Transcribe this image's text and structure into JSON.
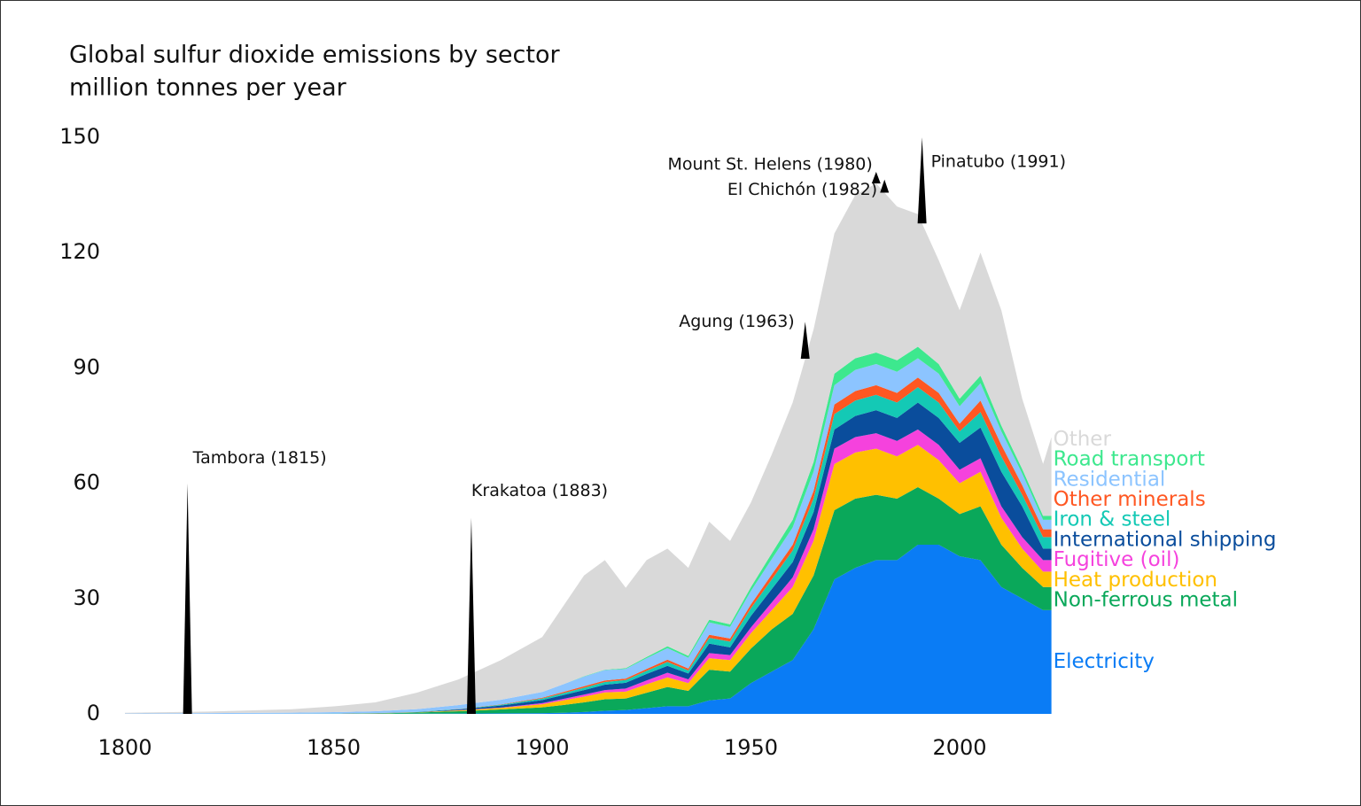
{
  "chart_data": {
    "type": "stacked-area",
    "title": "Global sulfur dioxide emissions by sector",
    "subtitle": "million tonnes per year",
    "x": [
      1800,
      1820,
      1840,
      1850,
      1860,
      1870,
      1880,
      1890,
      1900,
      1905,
      1910,
      1915,
      1920,
      1925,
      1930,
      1935,
      1940,
      1945,
      1950,
      1955,
      1960,
      1965,
      1970,
      1975,
      1980,
      1985,
      1990,
      1995,
      2000,
      2005,
      2010,
      2015,
      2020,
      2022
    ],
    "xlim": [
      1800,
      2022
    ],
    "xticks": [
      1800,
      1850,
      1900,
      1950,
      2000
    ],
    "ylim": [
      0,
      150
    ],
    "yticks": [
      0,
      30,
      60,
      90,
      120,
      150
    ],
    "series": [
      {
        "name": "Electricity",
        "color": "#0a7cf5",
        "values": [
          0,
          0,
          0,
          0,
          0.02,
          0.05,
          0.1,
          0.15,
          0.2,
          0.3,
          0.5,
          0.8,
          1,
          1.5,
          2,
          2,
          3.5,
          4,
          8,
          11,
          14,
          22,
          35,
          38,
          40,
          40,
          44,
          44,
          41,
          40,
          33,
          30,
          27,
          27
        ]
      },
      {
        "name": "Non-ferrous metal",
        "color": "#0aa85a",
        "values": [
          0,
          0,
          0.02,
          0.05,
          0.1,
          0.3,
          0.6,
          1,
          1.5,
          2,
          2.5,
          3,
          3,
          4,
          5,
          4,
          8,
          7,
          9,
          11,
          12,
          14,
          18,
          18,
          17,
          16,
          15,
          12,
          11,
          14,
          11,
          8,
          6,
          6
        ]
      },
      {
        "name": "Heat production",
        "color": "#ffc000",
        "values": [
          0,
          0,
          0,
          0,
          0.02,
          0.05,
          0.2,
          0.4,
          0.8,
          1.2,
          1.5,
          1.8,
          1.8,
          2.2,
          2.5,
          2,
          3,
          3,
          4,
          5,
          7,
          9,
          12,
          12,
          12,
          11,
          11,
          10,
          8,
          9,
          7,
          5,
          4,
          4
        ]
      },
      {
        "name": "Fugitive (oil)",
        "color": "#f542dd",
        "values": [
          0,
          0,
          0,
          0,
          0,
          0.01,
          0.05,
          0.1,
          0.3,
          0.4,
          0.5,
          0.6,
          0.8,
          1,
          1.2,
          1,
          1.3,
          1.3,
          1.5,
          2,
          2.5,
          3,
          4,
          4,
          4,
          4,
          4,
          4,
          3.5,
          3.5,
          3,
          3,
          3,
          3
        ]
      },
      {
        "name": "International shipping",
        "color": "#0a4d9c",
        "values": [
          0,
          0,
          0,
          0,
          0.02,
          0.05,
          0.2,
          0.5,
          0.8,
          1,
          1.2,
          1.4,
          1.5,
          1.7,
          1.8,
          1.5,
          2.5,
          2,
          3,
          3.5,
          4,
          4.5,
          5,
          5.5,
          6,
          6,
          7,
          7,
          7,
          8,
          9,
          8,
          3,
          3
        ]
      },
      {
        "name": "Iron & steel",
        "color": "#14c9b5",
        "values": [
          0,
          0,
          0,
          0,
          0.02,
          0.05,
          0.1,
          0.2,
          0.4,
          0.5,
          0.6,
          0.7,
          0.7,
          0.8,
          1,
          0.8,
          1.5,
          1.5,
          2,
          2.5,
          3,
          3.5,
          4,
          4,
          4,
          4,
          4,
          4,
          3,
          4,
          4,
          3,
          3,
          3
        ]
      },
      {
        "name": "Other minerals",
        "color": "#ff5722",
        "values": [
          0,
          0,
          0,
          0,
          0.01,
          0.02,
          0.05,
          0.1,
          0.2,
          0.3,
          0.4,
          0.4,
          0.4,
          0.5,
          0.6,
          0.5,
          0.8,
          0.8,
          1,
          1.3,
          1.5,
          2,
          2.5,
          2.5,
          2.5,
          2.5,
          2.5,
          2.5,
          2,
          3,
          3,
          2.5,
          2,
          2
        ]
      },
      {
        "name": "Residential",
        "color": "#8cc4ff",
        "values": [
          0.1,
          0.2,
          0.3,
          0.4,
          0.5,
          0.7,
          1,
          1.2,
          1.5,
          2,
          2.5,
          2.7,
          2.5,
          2.8,
          3,
          2.8,
          3.2,
          3,
          3.5,
          4,
          4.5,
          5,
          5,
          5.5,
          5.5,
          5.5,
          5,
          5,
          4.5,
          4.5,
          3.5,
          3,
          2.5,
          2.5
        ]
      },
      {
        "name": "Road transport",
        "color": "#3de88e",
        "values": [
          0,
          0,
          0,
          0,
          0,
          0,
          0,
          0,
          0,
          0,
          0.1,
          0.1,
          0.2,
          0.3,
          0.5,
          0.5,
          0.7,
          0.7,
          1,
          1.5,
          2,
          2.5,
          3,
          3,
          3,
          3,
          3,
          2.5,
          2,
          2,
          1.5,
          1.2,
          1,
          1
        ]
      },
      {
        "name": "Other",
        "color": "#d9d9d9",
        "values": [
          0.2,
          0.4,
          0.9,
          1.5,
          2.3,
          4.3,
          6.7,
          10.3,
          14.3,
          20.3,
          26.2,
          28.5,
          20.9,
          25.2,
          25.4,
          22.9,
          25.5,
          21.7,
          22,
          25.7,
          30.5,
          34.5,
          36.5,
          42.5,
          44,
          40,
          34.5,
          27,
          23,
          32,
          30,
          18.3,
          13.5,
          20.5
        ]
      }
    ],
    "volcanoes": [
      {
        "label": "Tambora (1815)",
        "year": 1815,
        "peak": 60
      },
      {
        "label": "Krakatoa (1883)",
        "year": 1883,
        "peak": 51
      },
      {
        "label": "Agung (1963)",
        "year": 1963,
        "peak": 102
      },
      {
        "label": "Mount St. Helens (1980)",
        "year": 1980,
        "peak": 141
      },
      {
        "label": "El Chichón (1982)",
        "year": 1982,
        "peak": 139
      },
      {
        "label": "Pinatubo (1991)",
        "year": 1991,
        "peak": 150
      }
    ]
  }
}
